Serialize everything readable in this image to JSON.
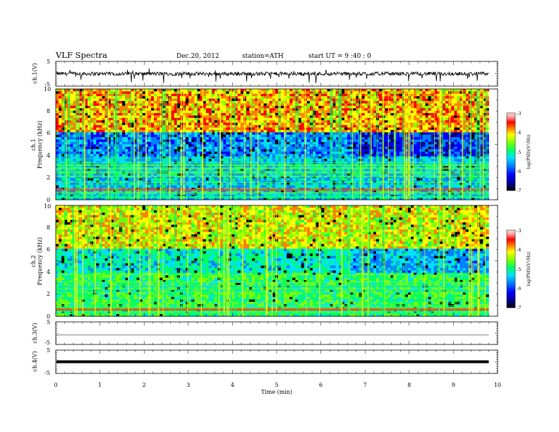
{
  "header": {
    "title": "VLF  Spectra",
    "date": "Dec.20, 2012",
    "station": "station=ATH",
    "start": "start  UT  =   9  :40 : 0"
  },
  "chart_data": [
    {
      "type": "line",
      "panel": "ch1-waveform",
      "ylabel": "ch.1(V)",
      "ylim": [
        -5,
        5
      ],
      "yticks": [
        "5",
        "-5"
      ],
      "baseline": 0,
      "noise_amplitude": 1.5
    },
    {
      "type": "heatmap",
      "panel": "ch1-spectrogram",
      "ylabel_channel": "ch.1",
      "ylabel": "Frequency  (kHz)",
      "ylim": [
        0,
        10
      ],
      "yticks": [
        "0",
        "2",
        "4",
        "6",
        "8",
        "10"
      ],
      "colorbar": {
        "label": "log(PSD)(V²/Hz)",
        "ticks": [
          "-3",
          "-4",
          "-5",
          "-6",
          "-7"
        ],
        "range": [
          -7,
          -3
        ]
      }
    },
    {
      "type": "heatmap",
      "panel": "ch2-spectrogram",
      "ylabel_channel": "ch.2",
      "ylabel": "Frequency  (kHz)",
      "ylim": [
        0,
        10
      ],
      "yticks": [
        "0",
        "2",
        "4",
        "6",
        "8",
        "10"
      ],
      "colorbar": {
        "label": "log(PSD)(V²/Hz)",
        "ticks": [
          "-3",
          "-4",
          "-5",
          "-6",
          "-7"
        ],
        "range": [
          -7,
          -3
        ]
      }
    },
    {
      "type": "line",
      "panel": "ch3-waveform",
      "ylabel": "ch.3(V)",
      "ylim": [
        -5,
        5
      ],
      "yticks": [
        "5",
        "-5"
      ],
      "baseline": -0.8,
      "noise_amplitude": 0.05
    },
    {
      "type": "line",
      "panel": "ch4-waveform",
      "ylabel": "ch.4(V)",
      "ylim": [
        -5,
        5
      ],
      "yticks": [
        "5",
        "-5"
      ],
      "baseline": 0,
      "noise_amplitude": 0.3
    }
  ],
  "xaxis": {
    "label": "Time  (min)",
    "range": [
      0,
      10
    ],
    "ticks": [
      "0",
      "1",
      "2",
      "3",
      "4",
      "5",
      "6",
      "7",
      "8",
      "9",
      "10"
    ],
    "data_end": 9.8
  }
}
